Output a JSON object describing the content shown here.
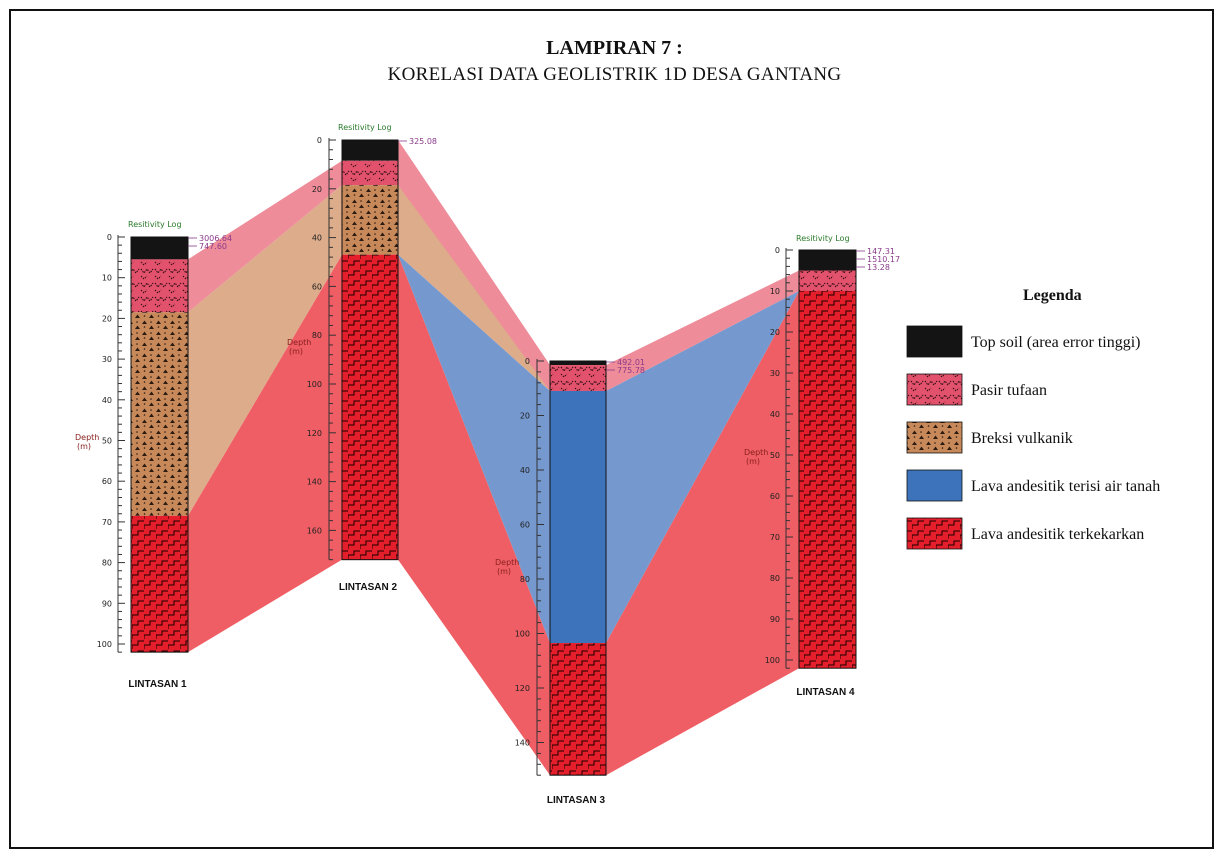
{
  "title": "LAMPIRAN 7 :",
  "subtitle": "KORELASI DATA GEOLISTRIK 1D DESA GANTANG",
  "legend": {
    "title": "Legenda",
    "items": [
      {
        "key": "top_soil",
        "label": "Top soil (area error tinggi)",
        "color": "#141414"
      },
      {
        "key": "pasir",
        "label": "Pasir tufaan",
        "color": "#e3526c"
      },
      {
        "key": "breksi",
        "label": "Breksi vulkanik",
        "color": "#c8895a"
      },
      {
        "key": "lava_air",
        "label": "Lava andesitik terisi air tanah",
        "color": "#3c73bb"
      },
      {
        "key": "lava_kekar",
        "label": "Lava andesitik terkekarkan",
        "color": "#e41e2a"
      }
    ]
  },
  "correlation_colors": {
    "pasir": "#ee8c99",
    "breksi": "#ddac8b",
    "lava_air": "#7599cf",
    "lava_kekar": "#ef5e64"
  },
  "wells": [
    {
      "name": "LINTASAN 1",
      "resistivity_title": "Resitivity Log",
      "depth_label": "Depth",
      "depth_unit": "(m)",
      "ticks": [
        "0",
        "10",
        "20",
        "30",
        "40",
        "50",
        "60",
        "70",
        "80",
        "90",
        "100"
      ],
      "tick_step": 10,
      "total_depth": 102,
      "values": [
        "3006.64",
        "747.60"
      ],
      "layers": [
        {
          "type": "top_soil",
          "top": 0,
          "bottom": 5.5
        },
        {
          "type": "pasir",
          "top": 5.5,
          "bottom": 18.5
        },
        {
          "type": "breksi",
          "top": 18.5,
          "bottom": 68.5
        },
        {
          "type": "lava_kekar",
          "top": 68.5,
          "bottom": 102
        }
      ]
    },
    {
      "name": "LINTASAN 2",
      "resistivity_title": "Resitivity Log",
      "depth_label": "Depth",
      "depth_unit": "(m)",
      "ticks": [
        "0",
        "20",
        "40",
        "60",
        "80",
        "100",
        "120",
        "140",
        "160"
      ],
      "tick_step": 20,
      "total_depth": 172,
      "values": [
        "325.08"
      ],
      "layers": [
        {
          "type": "top_soil",
          "top": 0,
          "bottom": 8.5
        },
        {
          "type": "pasir",
          "top": 8.5,
          "bottom": 18.5
        },
        {
          "type": "breksi",
          "top": 18.5,
          "bottom": 47
        },
        {
          "type": "lava_kekar",
          "top": 47,
          "bottom": 172
        }
      ]
    },
    {
      "name": "LINTASAN 3",
      "resistivity_title": "",
      "depth_label": "Depth",
      "depth_unit": "(m)",
      "ticks": [
        "0",
        "20",
        "40",
        "60",
        "80",
        "100",
        "120",
        "140"
      ],
      "tick_step": 20,
      "total_depth": 152,
      "values": [
        "492.01",
        "775.78"
      ],
      "layers": [
        {
          "type": "top_soil",
          "top": 0,
          "bottom": 1.5
        },
        {
          "type": "pasir",
          "top": 1.5,
          "bottom": 11
        },
        {
          "type": "lava_air",
          "top": 11,
          "bottom": 103.5
        },
        {
          "type": "lava_kekar",
          "top": 103.5,
          "bottom": 152
        }
      ]
    },
    {
      "name": "LINTASAN 4",
      "resistivity_title": "Resitivity Log",
      "depth_label": "Depth",
      "depth_unit": "(m)",
      "ticks": [
        "0",
        "10",
        "20",
        "30",
        "40",
        "50",
        "60",
        "70",
        "80",
        "90",
        "100"
      ],
      "tick_step": 10,
      "total_depth": 102,
      "values": [
        "147.31",
        "1510.17",
        "13.28"
      ],
      "layers": [
        {
          "type": "top_soil",
          "top": 0,
          "bottom": 5
        },
        {
          "type": "pasir",
          "top": 5,
          "bottom": 10
        },
        {
          "type": "lava_kekar",
          "top": 10,
          "bottom": 102
        }
      ]
    }
  ]
}
